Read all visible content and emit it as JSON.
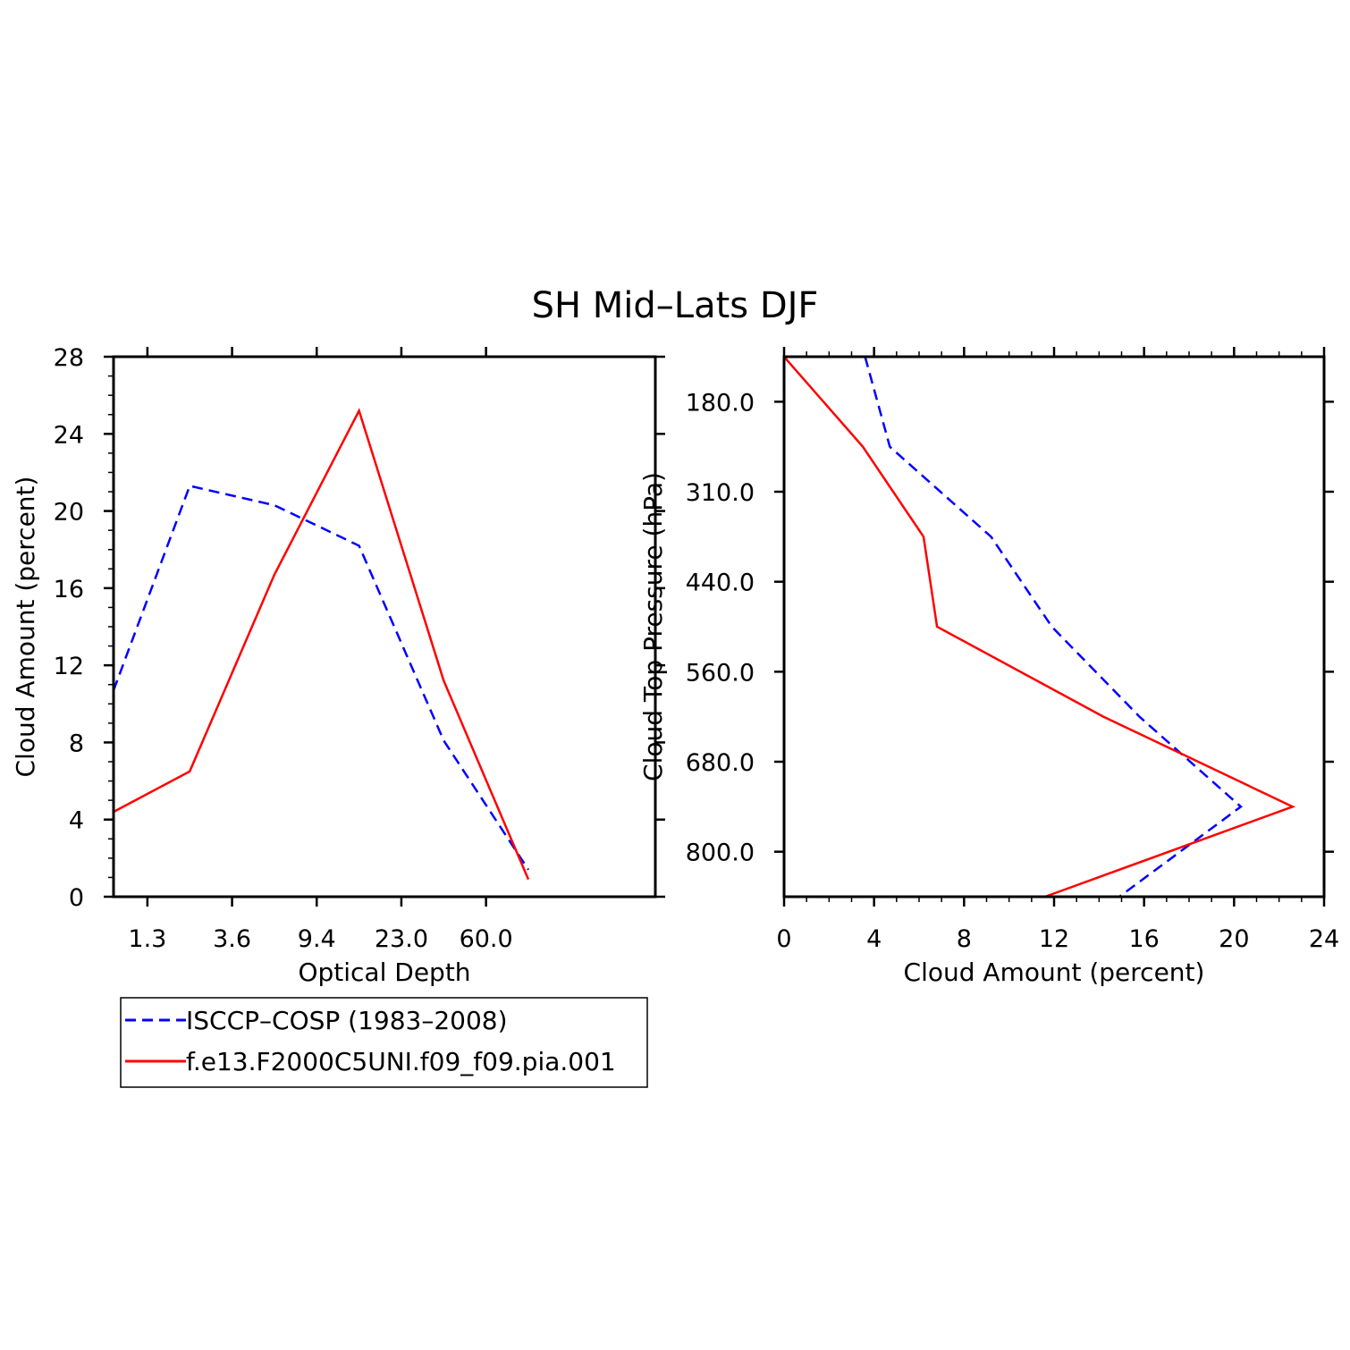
{
  "title": "SH Mid–Lats DJF",
  "colors": {
    "obs": "#0000ff",
    "model": "#ff0000",
    "axis": "#000000"
  },
  "legend": {
    "position": "below-left",
    "entries": [
      {
        "label": "ISCCP–COSP (1983–2008)",
        "color": "#0000ff",
        "dash": true
      },
      {
        "label": "f.e13.F2000C5UNI.f09_f09.pia.001",
        "color": "#ff0000",
        "dash": false
      }
    ]
  },
  "chart_data": [
    {
      "type": "line",
      "xlabel": "Optical Depth",
      "ylabel": "Cloud Amount (percent)",
      "x_tick_labels": [
        "1.3",
        "3.6",
        "9.4",
        "23.0",
        "60.0"
      ],
      "x_bin_edges": [
        "0.3",
        "1.3",
        "3.6",
        "9.4",
        "23.0",
        "60.0",
        "379.0"
      ],
      "y_ticks": [
        0,
        4,
        8,
        12,
        16,
        20,
        24,
        28
      ],
      "ylim": [
        0,
        28
      ],
      "grid": false,
      "series": [
        {
          "name": "ISCCP–COSP (1983–2008)",
          "x_index": [
            0,
            1,
            2,
            3,
            4,
            5
          ],
          "values": [
            10.7,
            21.3,
            20.3,
            18.2,
            8.1,
            1.4
          ]
        },
        {
          "name": "f.e13.F2000C5UNI.f09_f09.pia.001",
          "x_index": [
            0,
            1,
            2,
            3,
            4,
            5
          ],
          "values": [
            4.4,
            6.5,
            16.7,
            25.2,
            11.2,
            0.9
          ]
        }
      ]
    },
    {
      "type": "line",
      "orientation": "horizontal",
      "xlabel": "Cloud Amount (percent)",
      "ylabel": "Cloud Top Pressure (hPa)",
      "x_ticks": [
        0,
        4,
        8,
        12,
        16,
        20,
        24
      ],
      "xlim": [
        0,
        24
      ],
      "y_tick_labels": [
        "180.0",
        "310.0",
        "440.0",
        "560.0",
        "680.0",
        "800.0"
      ],
      "y_bin_edges": [
        "50",
        "180.0",
        "310.0",
        "440.0",
        "560.0",
        "680.0",
        "800.0",
        "1000"
      ],
      "grid": false,
      "series": [
        {
          "name": "ISCCP–COSP (1983–2008)",
          "level_index": [
            0,
            1,
            2,
            3,
            4,
            5,
            6
          ],
          "values": [
            3.6,
            4.7,
            9.2,
            11.9,
            15.8,
            20.3,
            14.9
          ]
        },
        {
          "name": "f.e13.F2000C5UNI.f09_f09.pia.001",
          "level_index": [
            0,
            1,
            2,
            3,
            4,
            5,
            6
          ],
          "values": [
            0.0,
            3.5,
            6.2,
            6.8,
            14.2,
            22.6,
            11.6
          ]
        }
      ]
    }
  ]
}
